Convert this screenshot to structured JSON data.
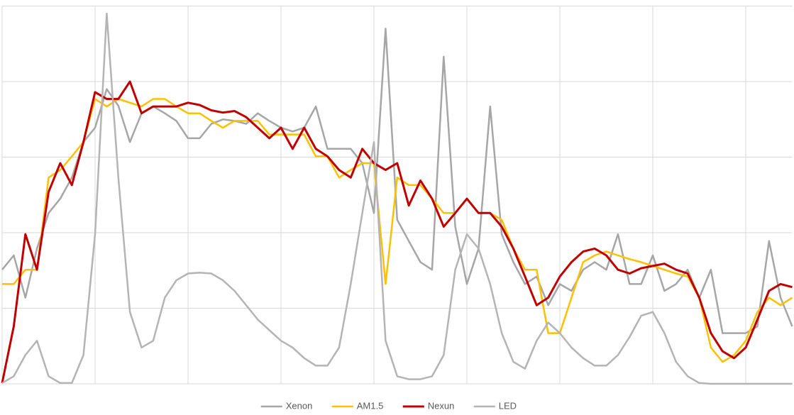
{
  "chart_data": {
    "type": "line",
    "x": [
      0,
      0.125,
      0.25,
      0.375,
      0.5,
      0.625,
      0.75,
      0.875,
      1,
      1.125,
      1.25,
      1.375,
      1.5,
      1.625,
      1.75,
      1.875,
      2,
      2.125,
      2.25,
      2.375,
      2.5,
      2.625,
      2.75,
      2.875,
      3,
      3.125,
      3.25,
      3.375,
      3.5,
      3.625,
      3.75,
      3.875,
      4,
      4.125,
      4.25,
      4.375,
      4.5,
      4.625,
      4.75,
      4.875,
      5,
      5.125,
      5.25,
      5.375,
      5.5,
      5.625,
      5.75,
      5.875,
      6,
      6.125,
      6.25,
      6.375,
      6.5,
      6.625,
      6.75,
      6.875,
      7,
      7.125,
      7.25,
      7.375,
      7.5,
      7.625,
      7.75,
      7.875,
      8,
      8.125,
      8.25,
      8.375,
      8.5
    ],
    "series": [
      {
        "name": "Xenon",
        "color": "#a6a6a6",
        "values": [
          1.51,
          1.7,
          1.14,
          1.79,
          2.26,
          2.45,
          2.73,
          3.2,
          3.39,
          3.9,
          3.68,
          3.2,
          3.58,
          3.67,
          3.58,
          3.48,
          3.25,
          3.25,
          3.44,
          3.5,
          3.48,
          3.44,
          3.58,
          3.48,
          3.39,
          3.34,
          3.39,
          3.67,
          3.11,
          3.11,
          3.11,
          2.92,
          2.26,
          4.7,
          2.17,
          1.89,
          1.61,
          1.51,
          4.33,
          2.08,
          1.32,
          1.79,
          3.67,
          1.98,
          1.61,
          1.32,
          1.42,
          1.04,
          1.32,
          1.23,
          1.51,
          1.61,
          1.51,
          1.98,
          1.32,
          1.32,
          1.7,
          1.23,
          1.32,
          1.51,
          1.14,
          1.51,
          0.67,
          0.67,
          0.67,
          0.76,
          1.89,
          1.14,
          0.76
        ]
      },
      {
        "name": "AM1.5",
        "color": "#ffc000",
        "values": [
          1.32,
          1.32,
          1.51,
          1.51,
          2.73,
          2.83,
          3.01,
          3.2,
          3.77,
          3.67,
          3.77,
          3.72,
          3.67,
          3.77,
          3.77,
          3.67,
          3.58,
          3.58,
          3.48,
          3.39,
          3.48,
          3.48,
          3.48,
          3.3,
          3.3,
          3.3,
          3.3,
          3.01,
          3.01,
          2.73,
          2.83,
          2.92,
          2.92,
          1.32,
          2.73,
          2.63,
          2.63,
          2.45,
          2.26,
          2.26,
          2.45,
          2.26,
          2.26,
          2.17,
          1.79,
          1.51,
          1.51,
          0.67,
          0.67,
          1.14,
          1.61,
          1.7,
          1.75,
          1.7,
          1.65,
          1.61,
          1.56,
          1.51,
          1.46,
          1.42,
          1.14,
          0.48,
          0.29,
          0.38,
          0.57,
          0.95,
          1.14,
          1.04,
          1.14
        ]
      },
      {
        "name": "Nexun",
        "color": "#c00000",
        "values": [
          0.01,
          0.76,
          1.98,
          1.51,
          2.54,
          2.92,
          2.63,
          3.2,
          3.86,
          3.77,
          3.77,
          4.0,
          3.58,
          3.67,
          3.67,
          3.67,
          3.72,
          3.69,
          3.62,
          3.59,
          3.61,
          3.53,
          3.39,
          3.25,
          3.39,
          3.11,
          3.39,
          3.11,
          3.01,
          2.83,
          2.73,
          3.11,
          2.92,
          2.83,
          2.92,
          2.36,
          2.69,
          2.45,
          2.08,
          2.26,
          2.45,
          2.26,
          2.26,
          2.08,
          1.79,
          1.42,
          1.04,
          1.14,
          1.42,
          1.61,
          1.75,
          1.79,
          1.7,
          1.51,
          1.46,
          1.53,
          1.56,
          1.59,
          1.51,
          1.46,
          1.14,
          0.67,
          0.43,
          0.34,
          0.48,
          0.85,
          1.23,
          1.32,
          1.28
        ]
      },
      {
        "name": "LED",
        "color": "#b4b4b4",
        "values": [
          0.01,
          0.1,
          0.38,
          0.57,
          0.1,
          0.01,
          0.01,
          0.38,
          1.98,
          4.9,
          2.73,
          0.95,
          0.48,
          0.57,
          1.14,
          1.37,
          1.46,
          1.47,
          1.46,
          1.37,
          1.23,
          1.04,
          0.85,
          0.71,
          0.57,
          0.48,
          0.34,
          0.24,
          0.24,
          0.48,
          1.32,
          2.26,
          3.2,
          0.57,
          0.1,
          0.06,
          0.06,
          0.1,
          0.38,
          1.51,
          1.98,
          1.79,
          1.32,
          0.67,
          0.29,
          0.2,
          0.57,
          0.81,
          0.67,
          0.48,
          0.34,
          0.24,
          0.24,
          0.38,
          0.62,
          0.9,
          0.95,
          0.67,
          0.29,
          0.1,
          0.01,
          0,
          0,
          0,
          0,
          0,
          0,
          0,
          0
        ]
      }
    ],
    "xlim": [
      0,
      8.5
    ],
    "ylim": [
      0,
      5
    ],
    "xticks": [
      0,
      1,
      2,
      3,
      4,
      5,
      6,
      7,
      8
    ],
    "yticks": [
      0,
      1,
      2,
      3,
      4,
      5
    ],
    "grid": true,
    "legend": "bottom"
  }
}
